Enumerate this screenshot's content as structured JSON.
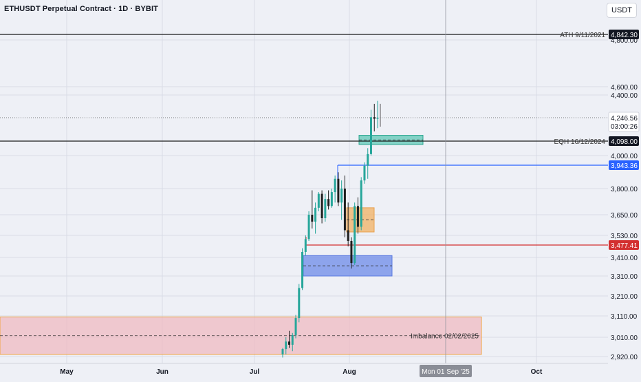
{
  "header": {
    "title": "ETHUSDT Perpetual Contract · 1D · BYBIT",
    "currency": "USDT"
  },
  "colors": {
    "background": "#eef0f6",
    "grid": "#d9dce6",
    "up": "#26a69a",
    "down": "#1e1e1e",
    "ath_line": "#1a1a1a",
    "blue_level": "#2962ff",
    "red_level": "#d32f2f",
    "fvg_teal": "#5ec8b6",
    "orderblock_orange": "#f2b263",
    "orderblock_blue": "#7b96ea",
    "imbalance": "#f0b7bf"
  },
  "chart_data": {
    "type": "candlestick",
    "price_scale": {
      "tick_labels": [
        "4,800.00",
        "4,600.00",
        "4,400.00",
        "4,000.00",
        "3,800.00",
        "3,650.00",
        "3,530.00",
        "3,410.00",
        "3,310.00",
        "3,210.00",
        "3,110.00",
        "3,010.00",
        "2,920.00"
      ],
      "tick_values": [
        4800,
        4600,
        4400,
        4000,
        3800,
        3650,
        3530,
        3410,
        3310,
        3210,
        3110,
        3010,
        2920
      ]
    },
    "time_axis": {
      "labels": [
        "May",
        "Jun",
        "Jul",
        "Aug",
        "Oct"
      ],
      "crosshair_label": "Mon 01 Sep '25"
    },
    "levels": [
      {
        "label": "ATH 9/11/2021",
        "price": 4842.3,
        "price_tag": "4,842.30",
        "style": "solid-black"
      },
      {
        "label": "EQH 16/12/2024",
        "price": 4098.0,
        "price_tag": "4,098.00",
        "style": "solid-black"
      },
      {
        "label": "",
        "price": 3943.36,
        "price_tag": "3,943.36",
        "style": "blue"
      },
      {
        "label": "",
        "price": 3477.41,
        "price_tag": "3,477.41",
        "style": "red"
      }
    ],
    "current_price": {
      "price": 4246.56,
      "price_tag": "4,246.56",
      "countdown": "03:00:26"
    },
    "zones": [
      {
        "name": "fvg-teal",
        "label": "",
        "top": 4135,
        "bottom": 4075,
        "color": "teal"
      },
      {
        "name": "orderblock-orange",
        "label": "",
        "top": 3690,
        "bottom": 3550,
        "color": "orange"
      },
      {
        "name": "orderblock-blue",
        "label": "",
        "top": 3420,
        "bottom": 3310,
        "color": "blue"
      },
      {
        "name": "imbalance",
        "label": "Imbalance 02/02/2025",
        "top": 3105,
        "bottom": 2930,
        "color": "pink"
      }
    ],
    "candles": [
      {
        "o": 2930,
        "h": 2960,
        "l": 2915,
        "c": 2955
      },
      {
        "o": 2955,
        "h": 3010,
        "l": 2930,
        "c": 2990
      },
      {
        "o": 2990,
        "h": 3040,
        "l": 2960,
        "c": 2975
      },
      {
        "o": 2975,
        "h": 3030,
        "l": 2945,
        "c": 3020
      },
      {
        "o": 3020,
        "h": 3115,
        "l": 3005,
        "c": 3100
      },
      {
        "o": 3100,
        "h": 3270,
        "l": 3080,
        "c": 3250
      },
      {
        "o": 3250,
        "h": 3460,
        "l": 3240,
        "c": 3440
      },
      {
        "o": 3440,
        "h": 3530,
        "l": 3420,
        "c": 3510
      },
      {
        "o": 3510,
        "h": 3670,
        "l": 3500,
        "c": 3650
      },
      {
        "o": 3650,
        "h": 3790,
        "l": 3570,
        "c": 3610
      },
      {
        "o": 3610,
        "h": 3720,
        "l": 3540,
        "c": 3690
      },
      {
        "o": 3690,
        "h": 3780,
        "l": 3670,
        "c": 3770
      },
      {
        "o": 3770,
        "h": 3790,
        "l": 3600,
        "c": 3630
      },
      {
        "o": 3630,
        "h": 3770,
        "l": 3610,
        "c": 3740
      },
      {
        "o": 3740,
        "h": 3790,
        "l": 3680,
        "c": 3700
      },
      {
        "o": 3700,
        "h": 3800,
        "l": 3690,
        "c": 3780
      },
      {
        "o": 3780,
        "h": 3880,
        "l": 3720,
        "c": 3860
      },
      {
        "o": 3860,
        "h": 3900,
        "l": 3700,
        "c": 3720
      },
      {
        "o": 3720,
        "h": 3850,
        "l": 3620,
        "c": 3800
      },
      {
        "o": 3800,
        "h": 3880,
        "l": 3520,
        "c": 3560
      },
      {
        "o": 3560,
        "h": 3720,
        "l": 3470,
        "c": 3500
      },
      {
        "o": 3500,
        "h": 3520,
        "l": 3350,
        "c": 3380
      },
      {
        "o": 3380,
        "h": 3720,
        "l": 3370,
        "c": 3700
      },
      {
        "o": 3700,
        "h": 3750,
        "l": 3540,
        "c": 3580
      },
      {
        "o": 3580,
        "h": 3870,
        "l": 3560,
        "c": 3850
      },
      {
        "o": 3850,
        "h": 3960,
        "l": 3830,
        "c": 3940
      },
      {
        "o": 3940,
        "h": 4050,
        "l": 3860,
        "c": 4010
      },
      {
        "o": 4010,
        "h": 4300,
        "l": 4000,
        "c": 4250
      },
      {
        "o": 4250,
        "h": 4340,
        "l": 4160,
        "c": 4240
      },
      {
        "o": 4240,
        "h": 4360,
        "l": 4180,
        "c": 4246.56
      }
    ]
  }
}
